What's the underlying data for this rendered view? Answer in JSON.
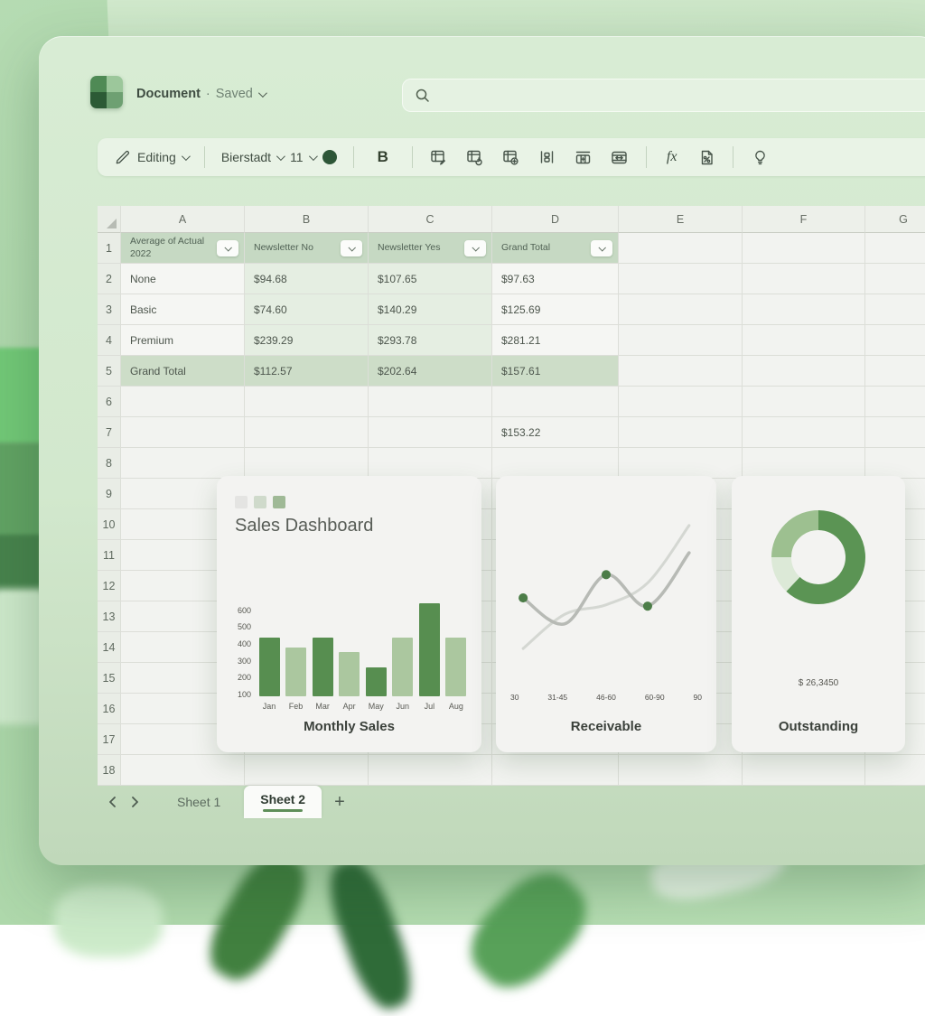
{
  "window": {
    "title": "Document",
    "separator": "·",
    "status": "Saved"
  },
  "search": {
    "icon": "search-icon",
    "value": ""
  },
  "toolbar": {
    "mode_label": "Editing",
    "font_name": "Bierstadt",
    "font_size": "11",
    "bold_label": "B",
    "fx_label": "fx",
    "icons": [
      "pencil-icon",
      "color-swatch-icon",
      "bold-icon",
      "table-edit-icon",
      "table-link-icon",
      "table-add-icon",
      "distribute-columns-icon",
      "insert-row-icon",
      "merge-cells-icon",
      "formula-fx-icon",
      "number-format-icon",
      "lightbulb-icon"
    ]
  },
  "grid": {
    "columns": [
      "A",
      "B",
      "C",
      "D",
      "E",
      "F",
      "G"
    ],
    "row_count": 18,
    "pivot": {
      "headers": [
        "Average of Actual 2022",
        "Newsletter No",
        "Newsletter Yes",
        "Grand Total"
      ],
      "rows": [
        {
          "label": "None",
          "values": [
            "$94.68",
            "$107.65",
            "$97.63"
          ]
        },
        {
          "label": "Basic",
          "values": [
            "$74.60",
            "$140.29",
            "$125.69"
          ]
        },
        {
          "label": "Premium",
          "values": [
            "$239.29",
            "$293.78",
            "$281.21"
          ]
        },
        {
          "label": "Grand Total",
          "values": [
            "$112.57",
            "$202.64",
            "$157.61"
          ]
        }
      ]
    },
    "extra_cell": {
      "row": 7,
      "column": "D",
      "value": "$153.22"
    }
  },
  "dashboard_card": {
    "title": "Sales Dashboard",
    "legend_colors": [
      "#e4e4e2",
      "#cfdacb",
      "#9fb996"
    ]
  },
  "chart_data": [
    {
      "type": "bar",
      "title": "Monthly Sales",
      "categories": [
        "Jan",
        "Feb",
        "Mar",
        "Apr",
        "May",
        "Jun",
        "Jul",
        "Aug"
      ],
      "values": [
        450,
        390,
        450,
        360,
        270,
        450,
        650,
        450
      ],
      "bar_palette": {
        "dark": "#578e50",
        "light": "#abc79f"
      },
      "bar_color_keys": [
        "dark",
        "light",
        "dark",
        "light",
        "dark",
        "light",
        "dark",
        "light"
      ],
      "y_ticks": [
        100,
        200,
        300,
        400,
        500,
        600
      ],
      "ylim": [
        100,
        700
      ],
      "grid": false,
      "legend": "none"
    },
    {
      "type": "line",
      "title": "Receivable",
      "categories": [
        "30",
        "31-45",
        "46-60",
        "60-90",
        "90"
      ],
      "series": [
        {
          "name": "trend",
          "color": "#d4d7d2",
          "width": 3,
          "values": [
            8,
            33,
            40,
            56,
            98
          ]
        },
        {
          "name": "actual",
          "color": "#b7bab5",
          "width": 3.5,
          "values": [
            45,
            26,
            62,
            39,
            78
          ],
          "markers": [
            0,
            2,
            3
          ],
          "marker_color": "#4c7d48"
        }
      ],
      "ylim": [
        0,
        100
      ],
      "grid": false,
      "legend": "none"
    },
    {
      "type": "donut",
      "title": "Outstanding",
      "center_label": "$ 26,3450",
      "slices": [
        {
          "value": 62,
          "color": "#5b9454"
        },
        {
          "value": 13,
          "color": "#dce9d7"
        },
        {
          "value": 25,
          "color": "#9dc090"
        }
      ],
      "legend": "none"
    }
  ],
  "sheet_tabs": {
    "tabs": [
      "Sheet 1",
      "Sheet 2"
    ],
    "active": "Sheet 2",
    "add_label": "+"
  }
}
